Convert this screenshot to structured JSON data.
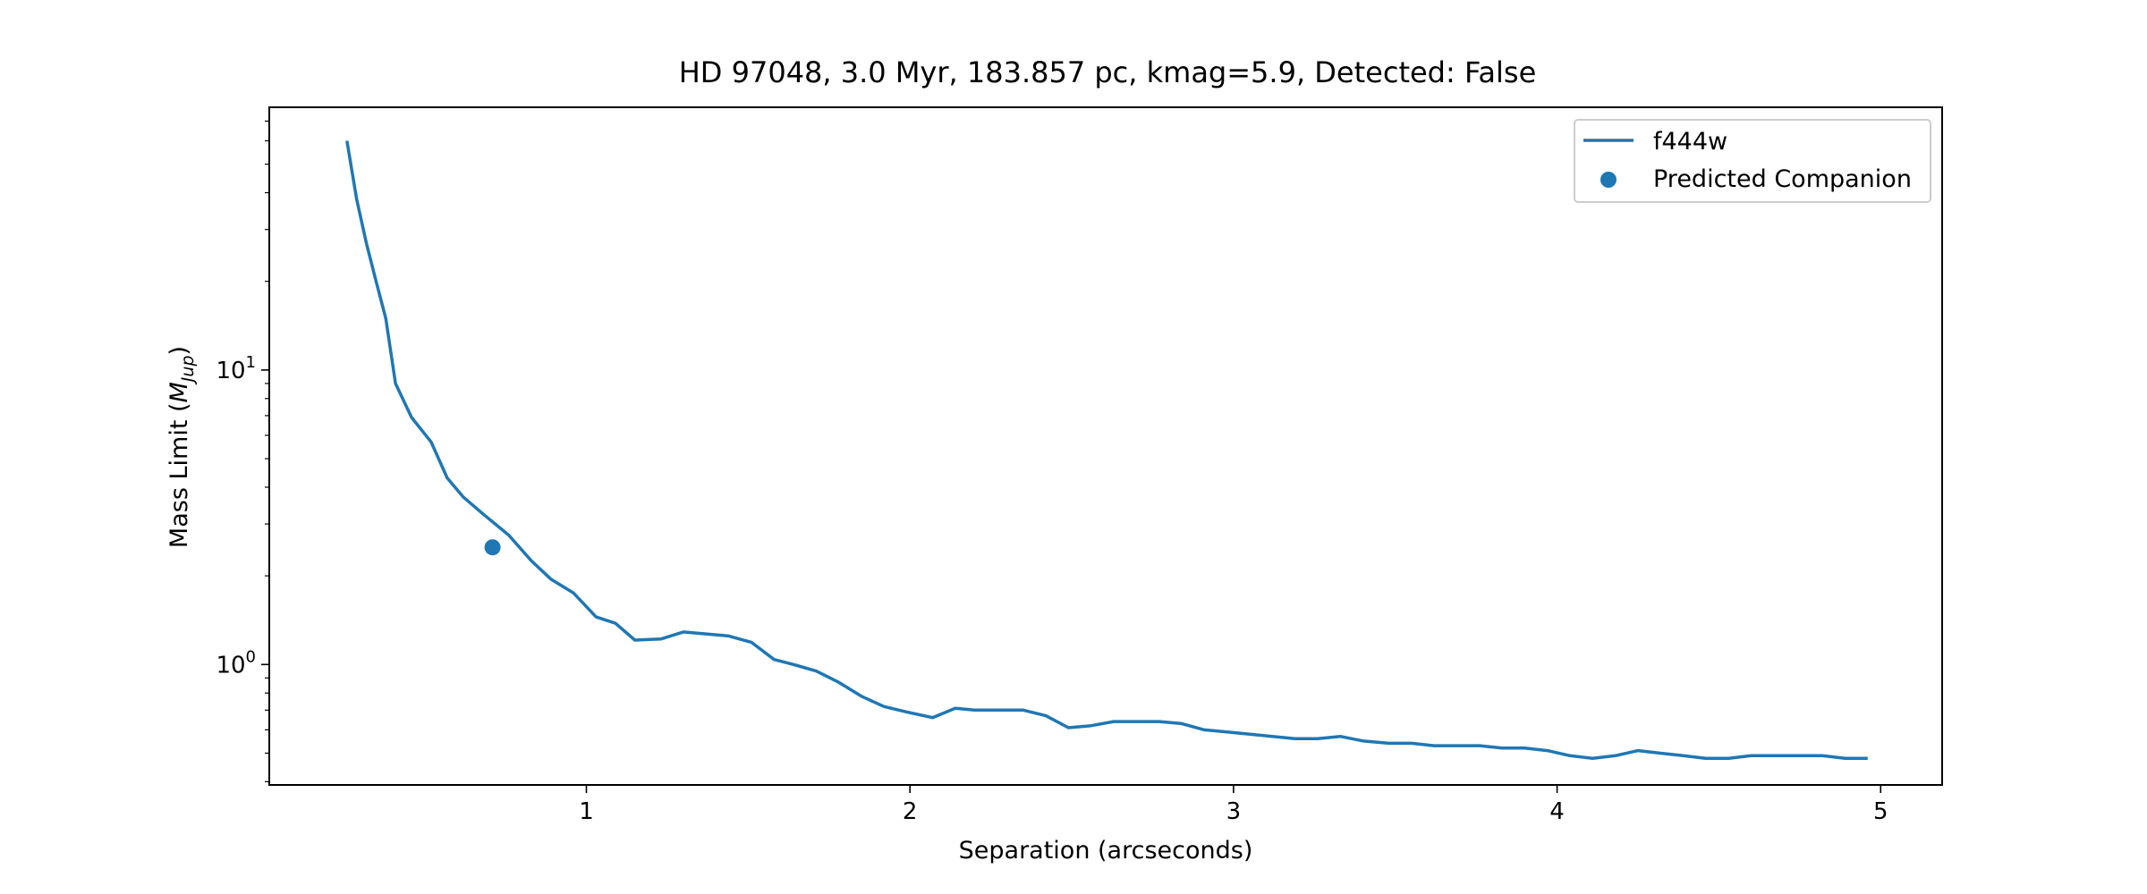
{
  "chart_data": {
    "type": "line",
    "title": "HD 97048, 3.0 Myr, 183.857 pc, kmag=5.9, Detected: False",
    "xlabel": "Separation (arcseconds)",
    "ylabel_main": "Mass Limit (",
    "ylabel_symbol": "M",
    "ylabel_subscript": "Jup",
    "ylabel_close": ")",
    "xlim": [
      0.02,
      5.19
    ],
    "ylim": [
      0.39,
      78
    ],
    "yscale": "log",
    "x_ticks": [
      1,
      2,
      3,
      4,
      5
    ],
    "x_tick_labels": [
      "1",
      "2",
      "3",
      "4",
      "5"
    ],
    "y_major_ticks": [
      {
        "value": 1,
        "base": "10",
        "exp": "0"
      },
      {
        "value": 10,
        "base": "10",
        "exp": "1"
      }
    ],
    "y_minor_ticks": [
      0.4,
      0.5,
      0.6,
      0.7,
      0.8,
      0.9,
      2,
      3,
      4,
      5,
      6,
      7,
      8,
      9,
      20,
      30,
      40,
      50,
      60,
      70
    ],
    "grid": false,
    "legend_position": "upper right",
    "series": [
      {
        "name": "f444w",
        "kind": "line",
        "color": "#1f77b4",
        "x": [
          0.26,
          0.29,
          0.32,
          0.35,
          0.38,
          0.41,
          0.46,
          0.52,
          0.57,
          0.62,
          0.68,
          0.76,
          0.83,
          0.89,
          0.96,
          1.03,
          1.09,
          1.15,
          1.23,
          1.3,
          1.37,
          1.44,
          1.51,
          1.58,
          1.64,
          1.71,
          1.78,
          1.85,
          1.92,
          1.99,
          2.07,
          2.14,
          2.2,
          2.28,
          2.35,
          2.42,
          2.49,
          2.56,
          2.63,
          2.7,
          2.77,
          2.84,
          2.91,
          2.98,
          3.05,
          3.12,
          3.19,
          3.26,
          3.33,
          3.4,
          3.48,
          3.55,
          3.62,
          3.69,
          3.76,
          3.83,
          3.9,
          3.97,
          4.04,
          4.11,
          4.18,
          4.25,
          4.32,
          4.39,
          4.46,
          4.53,
          4.6,
          4.68,
          4.75,
          4.82,
          4.89,
          4.96
        ],
        "y": [
          60,
          38,
          27,
          20,
          15,
          9,
          6.9,
          5.7,
          4.3,
          3.7,
          3.25,
          2.75,
          2.25,
          1.95,
          1.75,
          1.45,
          1.38,
          1.21,
          1.22,
          1.29,
          1.27,
          1.25,
          1.19,
          1.04,
          1.0,
          0.95,
          0.87,
          0.78,
          0.72,
          0.69,
          0.66,
          0.71,
          0.7,
          0.7,
          0.7,
          0.67,
          0.61,
          0.62,
          0.64,
          0.64,
          0.64,
          0.63,
          0.6,
          0.59,
          0.58,
          0.57,
          0.56,
          0.56,
          0.57,
          0.55,
          0.54,
          0.54,
          0.53,
          0.53,
          0.53,
          0.52,
          0.52,
          0.51,
          0.49,
          0.48,
          0.49,
          0.51,
          0.5,
          0.49,
          0.48,
          0.48,
          0.49,
          0.49,
          0.49,
          0.49,
          0.48,
          0.48
        ]
      },
      {
        "name": "Predicted Companion",
        "kind": "scatter",
        "color": "#1f77b4",
        "x": [
          0.71
        ],
        "y": [
          2.5
        ]
      }
    ]
  }
}
